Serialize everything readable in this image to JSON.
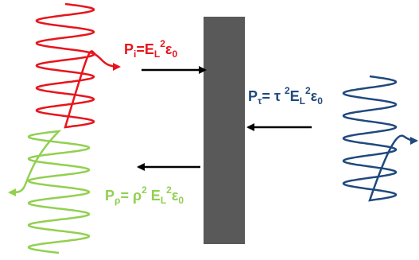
{
  "colors": {
    "incident": "#e8141c",
    "reflected": "#92d050",
    "transmitted": "#1f497d",
    "slab": "#595959",
    "arrow": "#000000"
  },
  "labels": {
    "incident": {
      "P": "P",
      "sub": "i",
      "rest1": "=E",
      "L": "L",
      "sup": "2",
      "eps": "ε",
      "zero": "0"
    },
    "transmitted": {
      "P": "P",
      "sub": "τ",
      "rest1": "= τ ",
      "sup1": "2",
      "E": "E",
      "L": "L",
      "sup2": "2",
      "eps": "ε",
      "zero": "0"
    },
    "reflected": {
      "P": "P",
      "sub": "ρ",
      "rest1": "= ρ",
      "sup1": "2",
      "E": " E",
      "L": "L",
      "sup2": "2",
      "eps": "ε",
      "zero": "0"
    }
  },
  "icons": {
    "slab": "slab-icon",
    "incident_wave": "wave-packet-icon",
    "reflected_wave": "wave-packet-icon",
    "transmitted_wave": "wave-packet-icon"
  }
}
